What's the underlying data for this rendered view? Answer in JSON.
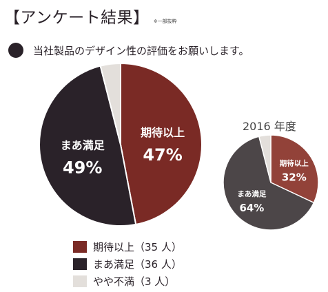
{
  "header": {
    "title": "【アンケート結果】",
    "note": "※一部抜粋"
  },
  "question": "当社製品のデザイン性の評価をお願いします。",
  "colors": {
    "satisfied": "#7a2a25",
    "somewhat": "#2a2229",
    "dissatisfied": "#e3dfdb",
    "prev_satisfied": "#924239",
    "prev_somewhat": "#4c4648",
    "prev_dissatisfied": "#e3dfdb",
    "label_text": "#ffffff"
  },
  "legend": [
    {
      "label": "期待以上（35 人）",
      "color": "#7a2a25"
    },
    {
      "label": "まあ満足（36 人）",
      "color": "#2a2229"
    },
    {
      "label": "やや不満（3 人）",
      "color": "#e3dfdb"
    }
  ],
  "chart_data": [
    {
      "type": "pie",
      "title": "",
      "slices": [
        {
          "name": "期待以上",
          "value": 47,
          "count": 35,
          "label": "期待以上",
          "percent_label": "47%"
        },
        {
          "name": "まあ満足",
          "value": 49,
          "count": 36,
          "label": "まあ満足",
          "percent_label": "49%"
        },
        {
          "name": "やや不満",
          "value": 4,
          "count": 3,
          "label": "",
          "percent_label": ""
        }
      ]
    },
    {
      "type": "pie",
      "title": "2016 年度",
      "slices": [
        {
          "name": "期待以上",
          "value": 32,
          "label": "期待以上",
          "percent_label": "32%"
        },
        {
          "name": "まあ満足",
          "value": 64,
          "label": "まあ満足",
          "percent_label": "64%"
        },
        {
          "name": "やや不満",
          "value": 4,
          "label": "",
          "percent_label": ""
        }
      ]
    }
  ]
}
